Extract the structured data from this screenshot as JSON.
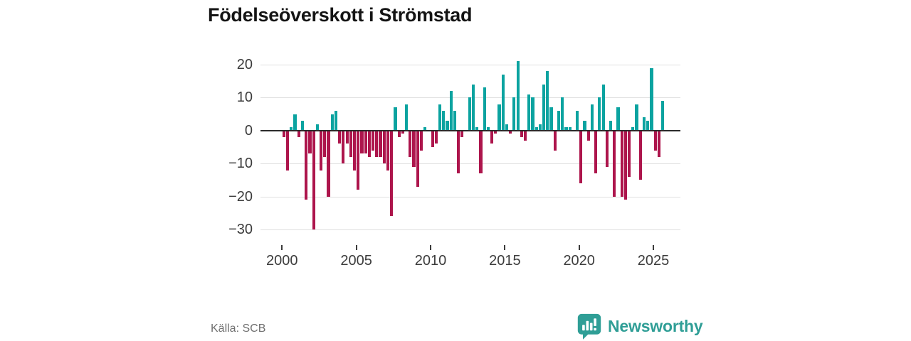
{
  "title": "Födelseöverskott i Strömstad",
  "source": "Källa: SCB",
  "brand": {
    "name": "Newsworthy",
    "icon": "bar-chart-map-marker-icon",
    "color": "#2f9e96"
  },
  "colors": {
    "positive_bar": "#0ba3a0",
    "negative_bar": "#ad154c",
    "zero_line": "#2b2b2b",
    "gridline": "#e0e0e0",
    "axis_text": "#3c3c3c",
    "title_text": "#141414",
    "source_text": "#707070"
  },
  "chart_data": {
    "type": "bar",
    "title": "Födelseöverskott i Strömstad",
    "frequency": "quarterly",
    "start_period": "2000Q1",
    "end_period": "2025Q3",
    "legend": "none",
    "grid": "horizontal",
    "ylim": [
      -32,
      22
    ],
    "y_axis": {
      "tick_values": [
        20,
        10,
        0,
        -10,
        -20,
        -30
      ],
      "tick_labels": [
        "20",
        "10",
        "0",
        "−10",
        "−20",
        "−30"
      ]
    },
    "x_axis": {
      "tick_years": [
        2000,
        2005,
        2010,
        2015,
        2020,
        2025
      ],
      "tick_labels": [
        "2000",
        "2005",
        "2010",
        "2015",
        "2020",
        "2025"
      ]
    },
    "series_by_year": [
      {
        "year": 2000,
        "values": [
          -2,
          -12,
          1,
          5
        ]
      },
      {
        "year": 2001,
        "values": [
          -2,
          3,
          -21,
          -7
        ]
      },
      {
        "year": 2002,
        "values": [
          -30,
          2,
          -12,
          -8
        ]
      },
      {
        "year": 2003,
        "values": [
          -20,
          5,
          6,
          -4
        ]
      },
      {
        "year": 2004,
        "values": [
          -10,
          -4,
          -8,
          -12
        ]
      },
      {
        "year": 2005,
        "values": [
          -18,
          -7,
          -7,
          -8
        ]
      },
      {
        "year": 2006,
        "values": [
          -6,
          -8,
          -8,
          -10
        ]
      },
      {
        "year": 2007,
        "values": [
          -12,
          -26,
          7,
          -2
        ]
      },
      {
        "year": 2008,
        "values": [
          -1,
          8,
          -8,
          -11
        ]
      },
      {
        "year": 2009,
        "values": [
          -17,
          -6,
          1,
          0
        ]
      },
      {
        "year": 2010,
        "values": [
          -5,
          -4,
          8,
          6
        ]
      },
      {
        "year": 2011,
        "values": [
          3,
          12,
          6,
          -13
        ]
      },
      {
        "year": 2012,
        "values": [
          -2,
          0,
          10,
          14
        ]
      },
      {
        "year": 2013,
        "values": [
          1,
          -13,
          13,
          1
        ]
      },
      {
        "year": 2014,
        "values": [
          -4,
          -1,
          8,
          17
        ]
      },
      {
        "year": 2015,
        "values": [
          2,
          -1,
          10,
          21
        ]
      },
      {
        "year": 2016,
        "values": [
          -2,
          -3,
          11,
          10
        ]
      },
      {
        "year": 2017,
        "values": [
          1,
          2,
          14,
          18
        ]
      },
      {
        "year": 2018,
        "values": [
          7,
          -6,
          6,
          10
        ]
      },
      {
        "year": 2019,
        "values": [
          1,
          1,
          0,
          6
        ]
      },
      {
        "year": 2020,
        "values": [
          -16,
          3,
          -3,
          8
        ]
      },
      {
        "year": 2021,
        "values": [
          -13,
          10,
          14,
          -11
        ]
      },
      {
        "year": 2022,
        "values": [
          3,
          -20,
          7,
          -20
        ]
      },
      {
        "year": 2023,
        "values": [
          -21,
          -14,
          1,
          8
        ]
      },
      {
        "year": 2024,
        "values": [
          -15,
          4,
          3,
          19
        ]
      },
      {
        "year": 2025,
        "values": [
          -6,
          -8,
          9
        ]
      }
    ]
  }
}
